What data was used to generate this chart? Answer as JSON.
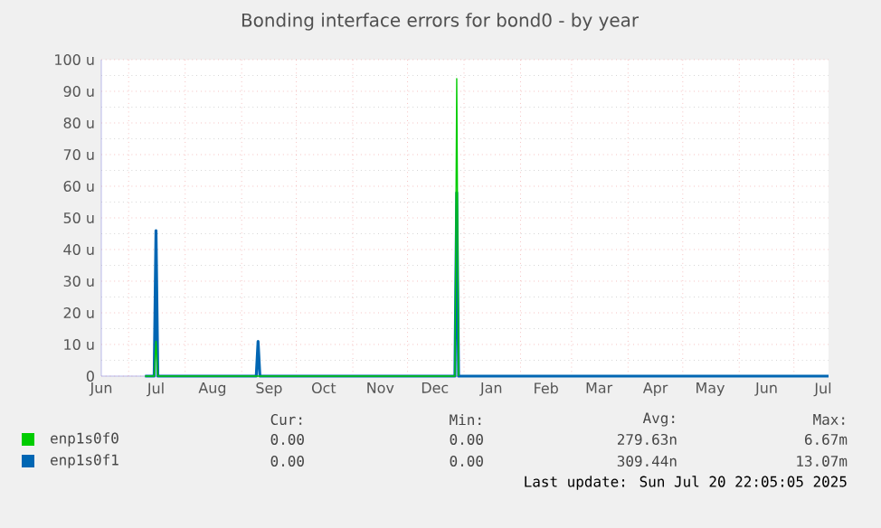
{
  "chart_data": {
    "type": "line",
    "title": "Bonding interface errors for bond0 - by year",
    "xlim": [
      "2024-06-16",
      "2025-07-20"
    ],
    "xticks": [
      {
        "value": "2024-06-16",
        "label": "Jun"
      },
      {
        "value": "2024-07-01",
        "label": null
      },
      {
        "value": "2024-07-16",
        "label": "Jul"
      },
      {
        "value": "2024-08-01",
        "label": null
      },
      {
        "value": "2024-08-16",
        "label": "Aug"
      },
      {
        "value": "2024-09-01",
        "label": null
      },
      {
        "value": "2024-09-16",
        "label": "Sep"
      },
      {
        "value": "2024-10-01",
        "label": null
      },
      {
        "value": "2024-10-16",
        "label": "Oct"
      },
      {
        "value": "2024-11-01",
        "label": null
      },
      {
        "value": "2024-11-16",
        "label": "Nov"
      },
      {
        "value": "2024-12-01",
        "label": null
      },
      {
        "value": "2024-12-16",
        "label": "Dec"
      },
      {
        "value": "2025-01-01",
        "label": null
      },
      {
        "value": "2025-01-16",
        "label": "Jan"
      },
      {
        "value": "2025-02-01",
        "label": null
      },
      {
        "value": "2025-02-15",
        "label": "Feb"
      },
      {
        "value": "2025-03-01",
        "label": null
      },
      {
        "value": "2025-03-16",
        "label": "Mar"
      },
      {
        "value": "2025-04-01",
        "label": null
      },
      {
        "value": "2025-04-16",
        "label": "Apr"
      },
      {
        "value": "2025-05-01",
        "label": null
      },
      {
        "value": "2025-05-16",
        "label": "May"
      },
      {
        "value": "2025-06-01",
        "label": null
      },
      {
        "value": "2025-06-16",
        "label": "Jun"
      },
      {
        "value": "2025-07-01",
        "label": null
      },
      {
        "value": "2025-07-17",
        "label": "Jul"
      }
    ],
    "ylim": [
      0,
      100
    ],
    "yticks": [
      0,
      {
        "value": 10,
        "label": "10 u"
      },
      {
        "value": 20,
        "label": "20 u"
      },
      {
        "value": 30,
        "label": "30 u"
      },
      {
        "value": 40,
        "label": "40 u"
      },
      {
        "value": 50,
        "label": "50 u"
      },
      {
        "value": 60,
        "label": "60 u"
      },
      {
        "value": 70,
        "label": "70 u"
      },
      {
        "value": 80,
        "label": "80 u"
      },
      {
        "value": 90,
        "label": "90 u"
      },
      {
        "value": 100,
        "label": "100 u"
      }
    ],
    "grid": true,
    "legend": "bottom",
    "marker": "none",
    "line_style": "solid",
    "series": [
      {
        "name": "enp1s0f0",
        "color": "#00cc00",
        "x": [
          "2024-07-10",
          "2024-07-15",
          "2024-07-16",
          "2024-07-17",
          "2024-12-27",
          "2024-12-28",
          "2024-12-29"
        ],
        "values": [
          0,
          0,
          11,
          0,
          0,
          94,
          0
        ]
      },
      {
        "name": "enp1s0f1",
        "color": "#0066b3",
        "x": [
          "2024-07-10",
          "2024-07-15",
          "2024-07-16",
          "2024-07-17",
          "2024-09-09",
          "2024-09-10",
          "2024-09-11",
          "2024-12-27",
          "2024-12-28",
          "2024-12-29",
          "2025-07-20"
        ],
        "values": [
          0,
          0,
          46,
          0,
          0,
          11,
          0,
          0,
          58,
          0,
          0
        ]
      }
    ],
    "annotations": [
      "Cur:",
      "Min:",
      "Avg:",
      "Max:",
      "0.00",
      "0.00",
      "279.63n",
      "6.67m",
      "0.00",
      "0.00",
      "309.44n",
      "13.07m",
      "Last update: Sun Jul 20 22:05:05 2025"
    ]
  }
}
